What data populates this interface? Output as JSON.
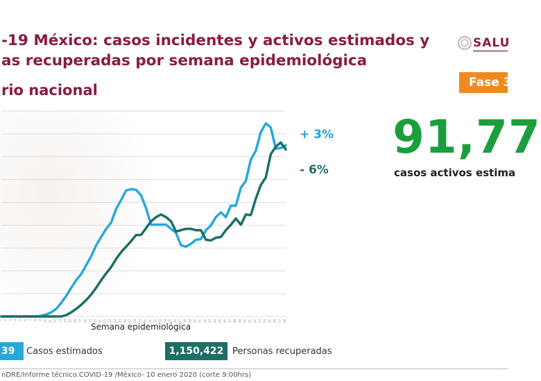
{
  "header": {
    "title_line1": "-19 México: casos incidentes y activos estimados y",
    "title_line2": "as recuperadas por semana epidemiológica",
    "subtitle": "rio nacional",
    "logo_text": "SALU",
    "phase_label": "Fase 3"
  },
  "stats": {
    "active_estimated": "91,77",
    "active_caption": "casos activos estima"
  },
  "annotations": {
    "estimated_change": "+ 3%",
    "recovered_change": "- 6%"
  },
  "legend": {
    "estimated_value": "39",
    "estimated_label": "Casos estimados",
    "recovered_value": "1,150,422",
    "recovered_label": "Personas recuperadas"
  },
  "footer": {
    "text": "nDRE/Informe técnico.COVID-19 /México- 10 enero 2020 (corte 9:00hrs)"
  },
  "colors": {
    "estimated": "#27a8db",
    "recovered": "#1c6f66",
    "title": "#8a1b44",
    "big_number": "#1c9e3d",
    "phase": "#ef8a22"
  },
  "chart_data": {
    "type": "line",
    "xlabel": "Semana epidemiológica",
    "ylabel": "",
    "x": [
      1,
      2,
      3,
      4,
      5,
      6,
      7,
      8,
      9,
      10,
      11,
      12,
      13,
      14,
      15,
      16,
      17,
      18,
      19,
      20,
      21,
      22,
      23,
      24,
      25,
      26,
      27,
      28,
      29,
      30,
      31,
      32,
      33,
      34,
      35,
      36,
      37,
      38,
      39,
      40,
      41,
      42,
      43,
      44,
      45,
      46,
      47,
      48,
      49,
      50,
      51,
      52,
      53,
      54,
      55,
      56,
      57,
      58
    ],
    "ylim": [
      0,
      30
    ],
    "grid": true,
    "series": [
      {
        "name": "Casos estimados",
        "color": "#27a8db",
        "values": [
          0,
          0,
          0,
          0,
          0,
          0,
          0,
          0,
          0.1,
          0.3,
          0.6,
          1.1,
          2,
          3,
          4.2,
          5.3,
          6.2,
          7.5,
          8.8,
          10.4,
          11.6,
          12.8,
          13.7,
          15.7,
          17,
          18.4,
          18.6,
          18.5,
          17.7,
          15.8,
          13.4,
          13.4,
          13.4,
          13.4,
          12.8,
          12.2,
          10.4,
          10.2,
          10.6,
          11.2,
          11.3,
          12.6,
          13.3,
          14.5,
          15.2,
          14.5,
          16.2,
          16.2,
          18.8,
          19.8,
          22.9,
          24.2,
          26.9,
          28.2,
          27.6,
          24.5,
          24.6,
          25
        ]
      },
      {
        "name": "Personas recuperadas",
        "color": "#1c6f66",
        "values": [
          0,
          0,
          0,
          0,
          0,
          0,
          0,
          0,
          0,
          0,
          0,
          0,
          0,
          0.2,
          0.6,
          1.1,
          1.7,
          2.4,
          3.2,
          4.2,
          5.3,
          6.3,
          7.2,
          8.4,
          9.4,
          10.2,
          11,
          11.9,
          11.9,
          12.9,
          13.9,
          14.5,
          14.9,
          14.5,
          13.9,
          12.4,
          12.6,
          12.8,
          12.8,
          12.6,
          12.6,
          11.2,
          11.1,
          11.5,
          11.6,
          12.6,
          13.4,
          14.3,
          13.4,
          14.9,
          14.8,
          17.2,
          19.2,
          20.3,
          23.7,
          24.8,
          25.4,
          24.4
        ]
      }
    ]
  }
}
